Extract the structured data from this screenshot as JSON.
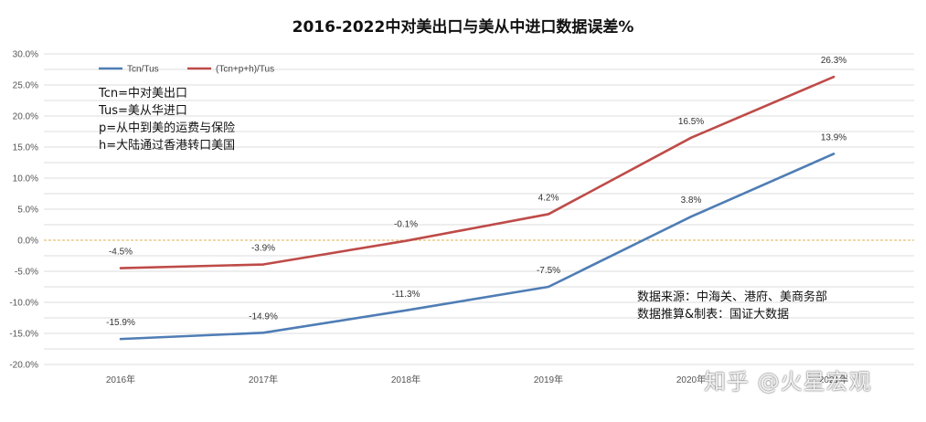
{
  "chart_data": {
    "type": "line",
    "title": "2016-2022中对美出口与美从中进口数据误差%",
    "categories": [
      "2016年",
      "2017年",
      "2018年",
      "2019年",
      "2020年",
      "2021年"
    ],
    "ylim": [
      -20,
      30
    ],
    "yticks": [
      "-20.0%",
      "-15.0%",
      "-10.0%",
      "-5.0%",
      "0.0%",
      "5.0%",
      "10.0%",
      "15.0%",
      "20.0%",
      "25.0%",
      "30.0%"
    ],
    "grid": true,
    "legend_position": "top-left",
    "series": [
      {
        "name": "Tcn/Tus",
        "color": "#4f7db5",
        "values": [
          -15.9,
          -14.9,
          -11.3,
          -7.5,
          3.8,
          13.9
        ],
        "labels": [
          "-15.9%",
          "-14.9%",
          "-11.3%",
          "-7.5%",
          "3.8%",
          "13.9%"
        ]
      },
      {
        "name": "(Tcn+p+h)/Tus",
        "color": "#be4b48",
        "values": [
          -4.5,
          -3.9,
          -0.1,
          4.2,
          16.5,
          26.3
        ],
        "labels": [
          "-4.5%",
          "-3.9%",
          "-0.1%",
          "4.2%",
          "16.5%",
          "26.3%"
        ]
      }
    ],
    "zero_line_color": "#e0b050"
  },
  "notes": {
    "definitions": [
      "Tcn=中对美出口",
      "Tus=美从华进口",
      "p=从中到美的运费与保险",
      "h=大陆通过香港转口美国"
    ],
    "source": [
      "数据来源：中海关、港府、美商务部",
      "数据推算&制表：国证大数据"
    ]
  },
  "watermark": "知乎 @火星宏观"
}
